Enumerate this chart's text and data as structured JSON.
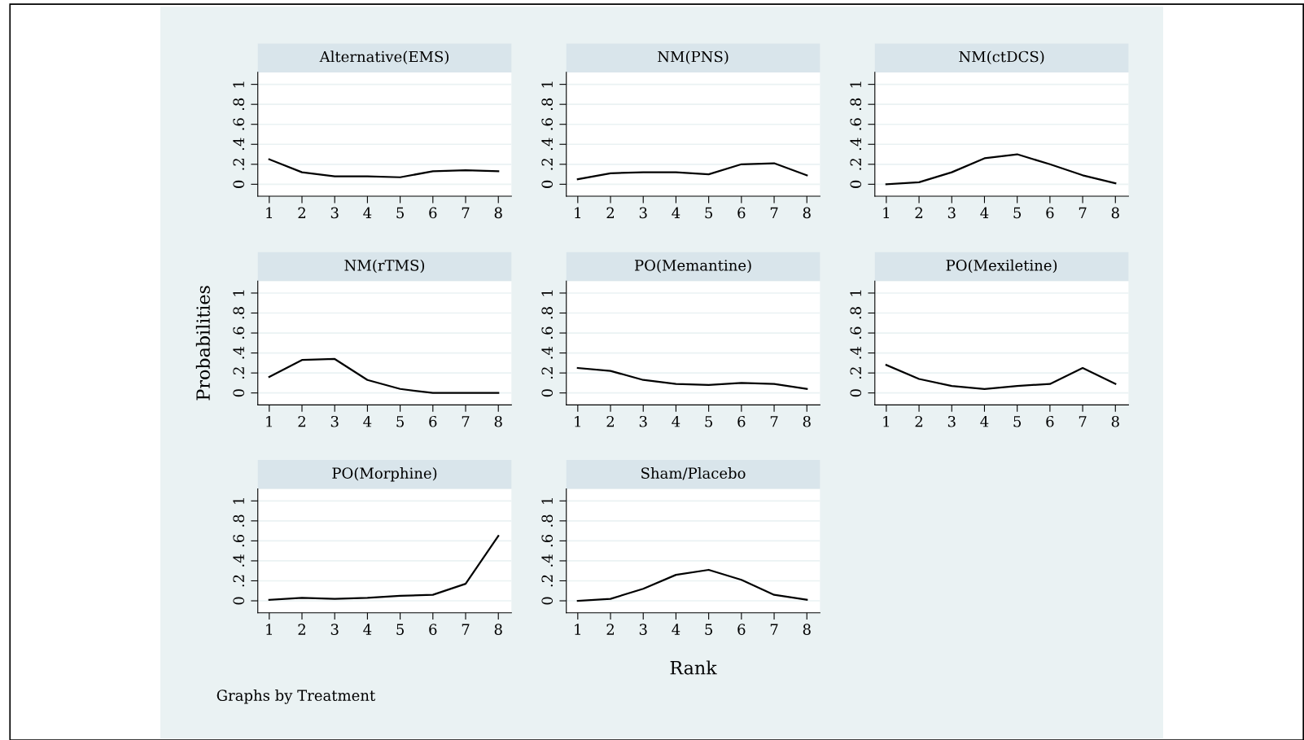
{
  "chart_data": [
    {
      "type": "line",
      "title": "Alternative(EMS)",
      "x": [
        1,
        2,
        3,
        4,
        5,
        6,
        7,
        8
      ],
      "xlim": [
        0.65,
        8.4
      ],
      "xticks": [
        1,
        2,
        3,
        4,
        5,
        6,
        7,
        8
      ],
      "ylim": [
        -0.12,
        1.12
      ],
      "yticks": [
        0,
        {
          "value": 0.2,
          "label": ".2"
        },
        {
          "value": 0.4,
          "label": ".4"
        },
        {
          "value": 0.6,
          "label": ".6"
        },
        {
          "value": 0.8,
          "label": ".8"
        },
        1
      ],
      "grid": "y",
      "series": [
        {
          "color": "#000000",
          "values": [
            0.25,
            0.12,
            0.08,
            0.08,
            0.07,
            0.13,
            0.14,
            0.13
          ]
        }
      ]
    },
    {
      "type": "line",
      "title": "NM(PNS)",
      "x": [
        1,
        2,
        3,
        4,
        5,
        6,
        7,
        8
      ],
      "xlim": [
        0.65,
        8.4
      ],
      "xticks": [
        1,
        2,
        3,
        4,
        5,
        6,
        7,
        8
      ],
      "ylim": [
        -0.12,
        1.12
      ],
      "yticks": [
        0,
        {
          "value": 0.2,
          "label": ".2"
        },
        {
          "value": 0.4,
          "label": ".4"
        },
        {
          "value": 0.6,
          "label": ".6"
        },
        {
          "value": 0.8,
          "label": ".8"
        },
        1
      ],
      "grid": "y",
      "series": [
        {
          "color": "#000000",
          "values": [
            0.05,
            0.11,
            0.12,
            0.12,
            0.1,
            0.2,
            0.21,
            0.09
          ]
        }
      ]
    },
    {
      "type": "line",
      "title": "NM(ctDCS)",
      "x": [
        1,
        2,
        3,
        4,
        5,
        6,
        7,
        8
      ],
      "xlim": [
        0.65,
        8.4
      ],
      "xticks": [
        1,
        2,
        3,
        4,
        5,
        6,
        7,
        8
      ],
      "ylim": [
        -0.12,
        1.12
      ],
      "yticks": [
        0,
        {
          "value": 0.2,
          "label": ".2"
        },
        {
          "value": 0.4,
          "label": ".4"
        },
        {
          "value": 0.6,
          "label": ".6"
        },
        {
          "value": 0.8,
          "label": ".8"
        },
        1
      ],
      "grid": "y",
      "series": [
        {
          "color": "#000000",
          "values": [
            0.0,
            0.02,
            0.12,
            0.26,
            0.3,
            0.2,
            0.09,
            0.01
          ]
        }
      ]
    },
    {
      "type": "line",
      "title": "NM(rTMS)",
      "ylabel": "Probabilities",
      "x": [
        1,
        2,
        3,
        4,
        5,
        6,
        7,
        8
      ],
      "xlim": [
        0.65,
        8.4
      ],
      "xticks": [
        1,
        2,
        3,
        4,
        5,
        6,
        7,
        8
      ],
      "ylim": [
        -0.12,
        1.12
      ],
      "yticks": [
        0,
        {
          "value": 0.2,
          "label": ".2"
        },
        {
          "value": 0.4,
          "label": ".4"
        },
        {
          "value": 0.6,
          "label": ".6"
        },
        {
          "value": 0.8,
          "label": ".8"
        },
        1
      ],
      "grid": "y",
      "series": [
        {
          "color": "#000000",
          "values": [
            0.16,
            0.33,
            0.34,
            0.13,
            0.04,
            0.0,
            0.0,
            0.0
          ]
        }
      ]
    },
    {
      "type": "line",
      "title": "PO(Memantine)",
      "x": [
        1,
        2,
        3,
        4,
        5,
        6,
        7,
        8
      ],
      "xlim": [
        0.65,
        8.4
      ],
      "xticks": [
        1,
        2,
        3,
        4,
        5,
        6,
        7,
        8
      ],
      "ylim": [
        -0.12,
        1.12
      ],
      "yticks": [
        0,
        {
          "value": 0.2,
          "label": ".2"
        },
        {
          "value": 0.4,
          "label": ".4"
        },
        {
          "value": 0.6,
          "label": ".6"
        },
        {
          "value": 0.8,
          "label": ".8"
        },
        1
      ],
      "grid": "y",
      "series": [
        {
          "color": "#000000",
          "values": [
            0.25,
            0.22,
            0.13,
            0.09,
            0.08,
            0.1,
            0.09,
            0.04
          ]
        }
      ]
    },
    {
      "type": "line",
      "title": "PO(Mexiletine)",
      "x": [
        1,
        2,
        3,
        4,
        5,
        6,
        7,
        8
      ],
      "xlim": [
        0.65,
        8.4
      ],
      "xticks": [
        1,
        2,
        3,
        4,
        5,
        6,
        7,
        8
      ],
      "ylim": [
        -0.12,
        1.12
      ],
      "yticks": [
        0,
        {
          "value": 0.2,
          "label": ".2"
        },
        {
          "value": 0.4,
          "label": ".4"
        },
        {
          "value": 0.6,
          "label": ".6"
        },
        {
          "value": 0.8,
          "label": ".8"
        },
        1
      ],
      "grid": "y",
      "series": [
        {
          "color": "#000000",
          "values": [
            0.28,
            0.14,
            0.07,
            0.04,
            0.07,
            0.09,
            0.25,
            0.09
          ]
        }
      ]
    },
    {
      "type": "line",
      "title": "PO(Morphine)",
      "annotations": [
        "Graphs by Treatment"
      ],
      "x": [
        1,
        2,
        3,
        4,
        5,
        6,
        7,
        8
      ],
      "xlim": [
        0.65,
        8.4
      ],
      "xticks": [
        1,
        2,
        3,
        4,
        5,
        6,
        7,
        8
      ],
      "ylim": [
        -0.12,
        1.12
      ],
      "yticks": [
        0,
        {
          "value": 0.2,
          "label": ".2"
        },
        {
          "value": 0.4,
          "label": ".4"
        },
        {
          "value": 0.6,
          "label": ".6"
        },
        {
          "value": 0.8,
          "label": ".8"
        },
        1
      ],
      "grid": "y",
      "series": [
        {
          "color": "#000000",
          "values": [
            0.01,
            0.03,
            0.02,
            0.03,
            0.05,
            0.06,
            0.17,
            0.65
          ]
        }
      ]
    },
    {
      "type": "line",
      "title": "Sham/Placebo",
      "xlabel": "Rank",
      "x": [
        1,
        2,
        3,
        4,
        5,
        6,
        7,
        8
      ],
      "xlim": [
        0.65,
        8.4
      ],
      "xticks": [
        1,
        2,
        3,
        4,
        5,
        6,
        7,
        8
      ],
      "ylim": [
        -0.12,
        1.12
      ],
      "yticks": [
        0,
        {
          "value": 0.2,
          "label": ".2"
        },
        {
          "value": 0.4,
          "label": ".4"
        },
        {
          "value": 0.6,
          "label": ".6"
        },
        {
          "value": 0.8,
          "label": ".8"
        },
        1
      ],
      "grid": "y",
      "series": [
        {
          "color": "#000000",
          "values": [
            0.0,
            0.02,
            0.12,
            0.26,
            0.31,
            0.21,
            0.06,
            0.01
          ]
        }
      ]
    }
  ]
}
